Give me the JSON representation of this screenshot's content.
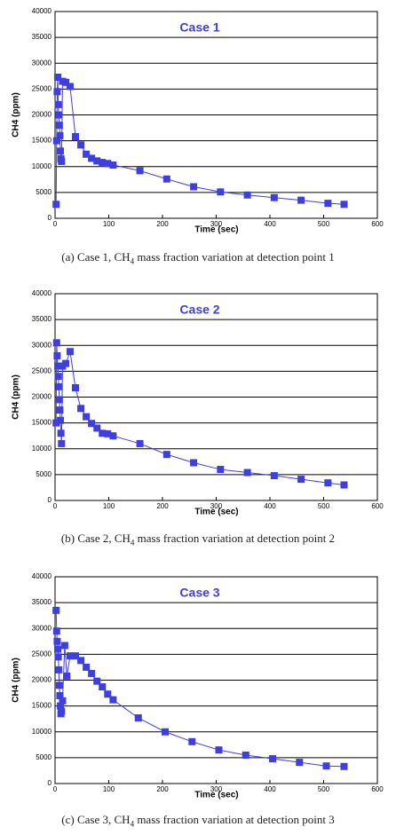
{
  "chart_data": [
    {
      "type": "line",
      "title": "Case 1",
      "xlabel": "Time (sec)",
      "ylabel": "CH4 (ppm)",
      "caption": [
        "(a) Case 1, CH",
        "4",
        " mass fraction variation at detection point 1"
      ],
      "color": "#3f3fdf",
      "grid": true,
      "xlim": [
        0,
        600
      ],
      "xticks": [
        0,
        100,
        200,
        300,
        400,
        500,
        600
      ],
      "ylim": [
        0,
        40000
      ],
      "yticks": [
        0,
        5000,
        10000,
        15000,
        20000,
        25000,
        30000,
        35000,
        40000
      ],
      "x": [
        2,
        3,
        4,
        5,
        6,
        7,
        8,
        9,
        10,
        11,
        12,
        14,
        20,
        28,
        38,
        48,
        58,
        68,
        78,
        88,
        98,
        108,
        158,
        208,
        258,
        308,
        358,
        408,
        458,
        508,
        538
      ],
      "values": [
        2700,
        15000,
        24500,
        27300,
        22000,
        20000,
        18000,
        16000,
        13000,
        11500,
        11000,
        26500,
        26300,
        25500,
        15800,
        14200,
        12400,
        11600,
        11100,
        10800,
        10600,
        10300,
        9200,
        7600,
        6100,
        5100,
        4500,
        4000,
        3500,
        2900,
        2700
      ]
    },
    {
      "type": "line",
      "title": "Case 2",
      "xlabel": "Time (sec)",
      "ylabel": "CH4 (ppm)",
      "caption": [
        "(b) Case 2, CH",
        "4",
        " mass fraction variation at detection point 2"
      ],
      "color": "#3f3fdf",
      "grid": true,
      "xlim": [
        0,
        600
      ],
      "xticks": [
        0,
        100,
        200,
        300,
        400,
        500,
        600
      ],
      "ylim": [
        0,
        40000
      ],
      "yticks": [
        0,
        5000,
        10000,
        15000,
        20000,
        25000,
        30000,
        35000,
        40000
      ],
      "x": [
        2,
        3,
        4,
        5,
        6,
        7,
        8,
        9,
        10,
        11,
        12,
        14,
        20,
        28,
        38,
        48,
        58,
        68,
        78,
        88,
        98,
        108,
        158,
        208,
        258,
        308,
        358,
        408,
        458,
        508,
        538
      ],
      "values": [
        15000,
        30500,
        28000,
        26000,
        24000,
        22000,
        19500,
        17500,
        15500,
        13000,
        11000,
        26000,
        26500,
        28800,
        21800,
        17800,
        16200,
        14900,
        14000,
        13000,
        12900,
        12500,
        11000,
        8900,
        7300,
        6000,
        5400,
        4800,
        4100,
        3400,
        3000
      ]
    },
    {
      "type": "line",
      "title": "Case 3",
      "xlabel": "Time (sec)",
      "ylabel": "CH4 (ppm)",
      "caption": [
        "(c) Case 3, CH",
        "4",
        " mass fraction variation at detection point 3"
      ],
      "color": "#3f3fdf",
      "grid": true,
      "xlim": [
        0,
        600
      ],
      "xticks": [
        0,
        100,
        200,
        300,
        400,
        500,
        600
      ],
      "ylim": [
        0,
        40000
      ],
      "yticks": [
        0,
        5000,
        10000,
        15000,
        20000,
        25000,
        30000,
        35000,
        40000
      ],
      "x": [
        2,
        3,
        4,
        5,
        6,
        7,
        8,
        9,
        10,
        11,
        12,
        14,
        18,
        22,
        28,
        38,
        48,
        58,
        68,
        78,
        88,
        98,
        108,
        155,
        205,
        255,
        305,
        355,
        405,
        455,
        505,
        538
      ],
      "values": [
        33500,
        29500,
        27500,
        26000,
        24500,
        22000,
        19000,
        17000,
        15000,
        13500,
        14000,
        16000,
        26700,
        20800,
        24700,
        24700,
        23800,
        22500,
        21300,
        19800,
        18700,
        17300,
        16200,
        12700,
        10000,
        8100,
        6500,
        5500,
        4800,
        4100,
        3400,
        3300
      ]
    }
  ]
}
